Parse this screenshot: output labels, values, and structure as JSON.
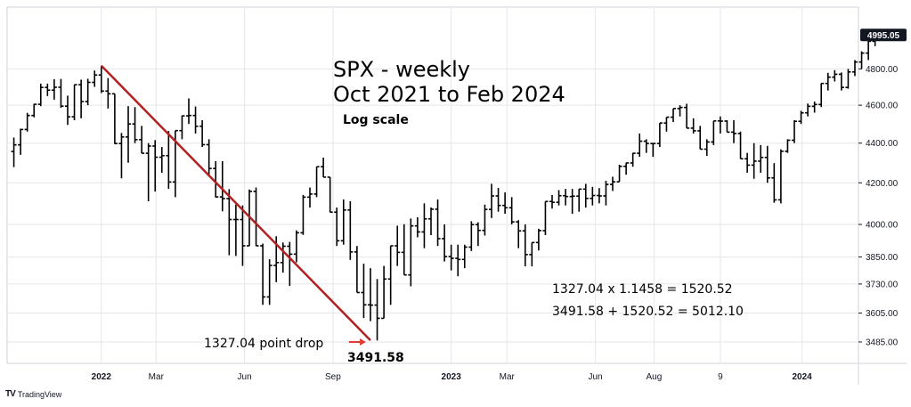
{
  "brand": {
    "logo": "TV",
    "name": "TradingView"
  },
  "chart_data": {
    "type": "ohlc",
    "title": "SPX - weekly",
    "subtitle": "Oct 2021 to Feb 2024",
    "scale_note": "Log scale",
    "y_scale": "log",
    "ylim": [
      3420,
      5150
    ],
    "xlim": [
      "2021-09-27",
      "2024-02-26"
    ],
    "y_ticks": [
      "4800.00",
      "4600.00",
      "4400.00",
      "4200.00",
      "4000.00",
      "3850.00",
      "3730.00",
      "3605.00",
      "3485.00"
    ],
    "y_tick_values": [
      4800,
      4600,
      4400,
      4200,
      4000,
      3850,
      3730,
      3605,
      3485
    ],
    "x_ticks": [
      {
        "label": "2022",
        "date": "2022-01-03",
        "bold": true
      },
      {
        "label": "Mar",
        "date": "2022-03-01",
        "bold": false
      },
      {
        "label": "Jun",
        "date": "2022-06-01",
        "bold": false
      },
      {
        "label": "Sep",
        "date": "2022-09-01",
        "bold": false
      },
      {
        "label": "2023",
        "date": "2023-01-02",
        "bold": true
      },
      {
        "label": "Mar",
        "date": "2023-03-01",
        "bold": false
      },
      {
        "label": "Jun",
        "date": "2023-06-01",
        "bold": false
      },
      {
        "label": "Aug",
        "date": "2023-08-01",
        "bold": false
      },
      {
        "label": "9",
        "date": "2023-10-09",
        "bold": false
      },
      {
        "label": "2024",
        "date": "2024-01-02",
        "bold": true
      }
    ],
    "last_price": {
      "label": "4995.05",
      "value": 4995.05
    },
    "series": [
      {
        "start_date": "2021-10-04",
        "interval_days": 7,
        "bars": [
          [
            4357,
            4429,
            4278,
            4391
          ],
          [
            4391,
            4475,
            4340,
            4471
          ],
          [
            4471,
            4559,
            4460,
            4545
          ],
          [
            4545,
            4608,
            4535,
            4605
          ],
          [
            4605,
            4718,
            4595,
            4697
          ],
          [
            4697,
            4718,
            4650,
            4682
          ],
          [
            4682,
            4743,
            4630,
            4698
          ],
          [
            4698,
            4744,
            4586,
            4595
          ],
          [
            4595,
            4652,
            4495,
            4538
          ],
          [
            4538,
            4713,
            4520,
            4712
          ],
          [
            4712,
            4740,
            4530,
            4620
          ],
          [
            4620,
            4745,
            4600,
            4725
          ],
          [
            4725,
            4791,
            4700,
            4766
          ],
          [
            4766,
            4818,
            4666,
            4677
          ],
          [
            4677,
            4749,
            4582,
            4662
          ],
          [
            4662,
            4595,
            4395,
            4398
          ],
          [
            4398,
            4453,
            4222,
            4432
          ],
          [
            4432,
            4595,
            4300,
            4500
          ],
          [
            4500,
            4590,
            4400,
            4418
          ],
          [
            4418,
            4490,
            4350,
            4348
          ],
          [
            4348,
            4400,
            4110,
            4385
          ],
          [
            4385,
            4416,
            4157,
            4328
          ],
          [
            4328,
            4380,
            4250,
            4336
          ],
          [
            4336,
            4463,
            4170,
            4204
          ],
          [
            4204,
            4465,
            4130,
            4465
          ],
          [
            4465,
            4545,
            4420,
            4543
          ],
          [
            4543,
            4637,
            4500,
            4545
          ],
          [
            4545,
            4593,
            4450,
            4488
          ],
          [
            4488,
            4520,
            4380,
            4392
          ],
          [
            4392,
            4420,
            4230,
            4271
          ],
          [
            4271,
            4308,
            4128,
            4131
          ],
          [
            4131,
            4308,
            4062,
            4123
          ],
          [
            4123,
            4169,
            3858,
            4023
          ],
          [
            4023,
            4094,
            3855,
            4023
          ],
          [
            4023,
            4090,
            3810,
            3901
          ],
          [
            3901,
            4167,
            3900,
            4158
          ],
          [
            4158,
            4177,
            3900,
            3901
          ],
          [
            3901,
            3911,
            3640,
            3674
          ],
          [
            3674,
            3840,
            3640,
            3812
          ],
          [
            3812,
            3945,
            3738,
            3825
          ],
          [
            3825,
            3916,
            3780,
            3899
          ],
          [
            3899,
            3919,
            3722,
            3863
          ],
          [
            3863,
            3972,
            3826,
            3961
          ],
          [
            3961,
            4141,
            3951,
            4130
          ],
          [
            4130,
            4177,
            4080,
            4145
          ],
          [
            4145,
            4245,
            4130,
            4280
          ],
          [
            4280,
            4326,
            4233,
            4228
          ],
          [
            4228,
            4210,
            4057,
            4058
          ],
          [
            4058,
            4080,
            3900,
            3924
          ],
          [
            3924,
            4119,
            3906,
            4068
          ],
          [
            4068,
            4110,
            3837,
            3873
          ],
          [
            3873,
            3900,
            3722,
            3693
          ],
          [
            3693,
            3820,
            3584,
            3640
          ],
          [
            3640,
            3800,
            3571,
            3639
          ],
          [
            3639,
            3752,
            3491,
            3583
          ],
          [
            3583,
            3810,
            3630,
            3752
          ],
          [
            3752,
            3859,
            3640,
            3901
          ],
          [
            3901,
            3994,
            3810,
            3871
          ],
          [
            3871,
            4001,
            3810,
            3770
          ],
          [
            3770,
            4028,
            3720,
            3993
          ],
          [
            3993,
            4034,
            3940,
            3965
          ],
          [
            3965,
            4100,
            3890,
            4026
          ],
          [
            4026,
            4080,
            3950,
            4072
          ],
          [
            4072,
            4119,
            3900,
            3934
          ],
          [
            3934,
            4000,
            3830,
            3852
          ],
          [
            3852,
            3906,
            3790,
            3844
          ],
          [
            3844,
            3906,
            3764,
            3839
          ],
          [
            3839,
            3906,
            3800,
            3895
          ],
          [
            3895,
            4015,
            3877,
            3999
          ],
          [
            3999,
            4010,
            3900,
            3972
          ],
          [
            3972,
            4094,
            3948,
            4071
          ],
          [
            4071,
            4195,
            4030,
            4136
          ],
          [
            4136,
            4175,
            4060,
            4090
          ],
          [
            4090,
            4153,
            4050,
            4079
          ],
          [
            4079,
            4130,
            4000,
            4012
          ],
          [
            4012,
            4020,
            3890,
            3970
          ],
          [
            3970,
            4000,
            3808,
            3861
          ],
          [
            3861,
            3880,
            3808,
            3916
          ],
          [
            3916,
            3980,
            3880,
            3971
          ],
          [
            3971,
            4040,
            3950,
            4109
          ],
          [
            4109,
            4140,
            4075,
            4105
          ],
          [
            4105,
            4164,
            4090,
            4137
          ],
          [
            4137,
            4170,
            4090,
            4133
          ],
          [
            4133,
            4170,
            4050,
            4135
          ],
          [
            4135,
            4170,
            4060,
            4169
          ],
          [
            4169,
            4195,
            4080,
            4124
          ],
          [
            4124,
            4180,
            4090,
            4138
          ],
          [
            4138,
            4174,
            4100,
            4136
          ],
          [
            4136,
            4210,
            4090,
            4192
          ],
          [
            4192,
            4230,
            4160,
            4205
          ],
          [
            4205,
            4290,
            4220,
            4282
          ],
          [
            4282,
            4300,
            4240,
            4299
          ],
          [
            4299,
            4350,
            4280,
            4348
          ],
          [
            4348,
            4450,
            4330,
            4410
          ],
          [
            4410,
            4420,
            4350,
            4398
          ],
          [
            4398,
            4400,
            4330,
            4398
          ],
          [
            4398,
            4410,
            4380,
            4505
          ],
          [
            4505,
            4530,
            4460,
            4536
          ],
          [
            4536,
            4580,
            4510,
            4582
          ],
          [
            4582,
            4600,
            4540,
            4588
          ],
          [
            4588,
            4608,
            4510,
            4478
          ],
          [
            4478,
            4530,
            4450,
            4464
          ],
          [
            4464,
            4490,
            4370,
            4369
          ],
          [
            4369,
            4420,
            4335,
            4406
          ],
          [
            4406,
            4490,
            4390,
            4516
          ],
          [
            4516,
            4540,
            4450,
            4515
          ],
          [
            4515,
            4520,
            4460,
            4457
          ],
          [
            4457,
            4520,
            4400,
            4450
          ],
          [
            4450,
            4460,
            4320,
            4320
          ],
          [
            4320,
            4350,
            4250,
            4288
          ],
          [
            4288,
            4400,
            4220,
            4308
          ],
          [
            4308,
            4390,
            4250,
            4327
          ],
          [
            4327,
            4386,
            4200,
            4224
          ],
          [
            4224,
            4298,
            4103,
            4117
          ],
          [
            4117,
            4368,
            4100,
            4358
          ],
          [
            4358,
            4420,
            4350,
            4415
          ],
          [
            4415,
            4520,
            4400,
            4514
          ],
          [
            4514,
            4570,
            4500,
            4559
          ],
          [
            4559,
            4609,
            4540,
            4594
          ],
          [
            4594,
            4620,
            4560,
            4604
          ],
          [
            4604,
            4720,
            4590,
            4719
          ],
          [
            4719,
            4778,
            4680,
            4754
          ],
          [
            4754,
            4793,
            4730,
            4770
          ],
          [
            4770,
            4780,
            4680,
            4697
          ],
          [
            4697,
            4800,
            4690,
            4783
          ],
          [
            4783,
            4850,
            4760,
            4839
          ],
          [
            4839,
            4900,
            4800,
            4890
          ],
          [
            4890,
            4960,
            4850,
            4958
          ],
          [
            4958,
            5000,
            4930,
            4995
          ]
        ]
      }
    ],
    "trendline": {
      "from": {
        "date": "2022-01-03",
        "value": 4818.62
      },
      "to": {
        "date": "2022-10-10",
        "value": 3491.58
      },
      "color": "#b22222"
    },
    "annotations": {
      "drop_label": "1327.04 point drop",
      "low_label": "3491.58",
      "calc_line1": "1327.04 x 1.1458 = 1520.52",
      "calc_line2": "3491.58 + 1520.52 = 5012.10"
    },
    "colors": {
      "bars": "#000000",
      "trendline": "#b22222",
      "arrow": "#e53935",
      "grid": "#e6e6e6",
      "last_price_bg": "#131722"
    }
  }
}
